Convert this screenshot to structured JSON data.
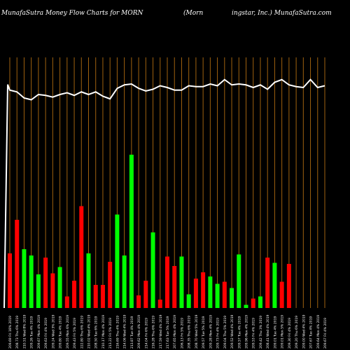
{
  "header": {
    "left_title": "MunafaSutra  Money Flow  Charts for MORN",
    "center_title": "(Morn",
    "right_title": "ingstar,  Inc.) MunafaSutra.com"
  },
  "colors": {
    "background": "#000000",
    "buy": "#00ff00",
    "sell": "#ff0000",
    "grid": "#a0620f",
    "price_line": "#ffffff"
  },
  "chart_data": {
    "type": "bar",
    "grid": true,
    "categories": [
      "209.69 Fri 18% 2019",
      "208.73 Thu 6% 2019",
      "210.51 Wed 8% 2019",
      "209.26 Tue 4% 2019",
      "209.67 Mon 4% 2019",
      "209.63 Fri 4% 2019",
      "209.24 Wed 3% 2019",
      "209.80 Tue 4% 2019",
      "209.55 Mon 6% 2019",
      "209.43 Fri 5% 2019",
      "222.80 Thu 6% 2019",
      "210.02 Wed 4% 2019",
      "208.50 Tue 6% 2019",
      "210.17 Mon 4% 2019",
      "213.22 Fri 5% 2019",
      "216.69 Thu 4% 2019",
      "214.06 Wed 4% 2019",
      "213.87 Tue 4% 2019",
      "209.62 Mon 4% 2019",
      "214.04 Fri 6% 2019",
      "216.28 Thu 6% 2019",
      "217.59 Wed 4% 2019",
      "217.63 Tue 5% 2019",
      "207.65 Mon 4% 2019",
      "206.13 Fri 5% 2019",
      "208.35 Thu 6% 2019",
      "208.70 Wed 5% 2019",
      "209.57 Tue 5% 2019",
      "209.28 Mon 4% 2019",
      "209.73 Fri 4% 2019",
      "209.04 Thu 5% 2019",
      "209.52 Wed 4% 2019",
      "209.57 Tue 4% 2019",
      "209.96 Mon 4% 2019",
      "209.53 Fri 4% 2019",
      "209.42 Thu 3% 2019",
      "208.41 Wed 4% 2019",
      "209.01 Tue 4% 2019",
      "209.01 Mon 5% 2019",
      "209.30 Fri 4% 2019",
      "209.20 Thu 6% 2019",
      "209.00 Wed 4% 2019",
      "207.67 Tue 4% 2019",
      "209.64 Mon 4% 2019",
      "209.67 Fri 4% 2019"
    ],
    "bar_values": [
      52,
      84,
      56,
      50,
      32,
      48,
      33,
      39,
      11,
      26,
      97,
      52,
      22,
      22,
      44,
      89,
      50,
      146,
      12,
      26,
      72,
      8,
      49,
      40,
      49,
      13,
      28,
      34,
      30,
      23,
      25,
      19,
      51,
      3,
      9,
      11,
      48,
      43,
      25,
      42,
      0,
      0,
      0,
      0,
      0
    ],
    "bar_direction": [
      "sell",
      "sell",
      "buy",
      "buy",
      "buy",
      "sell",
      "sell",
      "buy",
      "sell",
      "sell",
      "sell",
      "buy",
      "sell",
      "sell",
      "sell",
      "buy",
      "buy",
      "buy",
      "sell",
      "sell",
      "buy",
      "sell",
      "sell",
      "sell",
      "buy",
      "buy",
      "sell",
      "sell",
      "buy",
      "buy",
      "sell",
      "buy",
      "buy",
      "buy",
      "sell",
      "buy",
      "sell",
      "buy",
      "sell",
      "sell",
      "buy",
      "buy",
      "buy",
      "buy",
      "buy"
    ],
    "price_values": [
      218.9,
      218.7,
      218.0,
      217.8,
      218.4,
      218.3,
      218.1,
      218.4,
      218.6,
      218.3,
      218.7,
      218.4,
      218.7,
      218.2,
      217.9,
      219.1,
      219.5,
      219.6,
      219.1,
      218.8,
      219.0,
      219.4,
      219.2,
      218.9,
      218.9,
      219.4,
      219.3,
      219.3,
      219.6,
      219.4,
      220.1,
      219.5,
      219.6,
      219.5,
      219.2,
      219.5,
      219.0,
      219.8,
      220.1,
      219.5,
      219.3,
      219.2,
      220.1,
      219.2,
      219.4
    ],
    "ylim_bars": [
      0,
      160
    ],
    "ylim_price": [
      214,
      222
    ]
  }
}
